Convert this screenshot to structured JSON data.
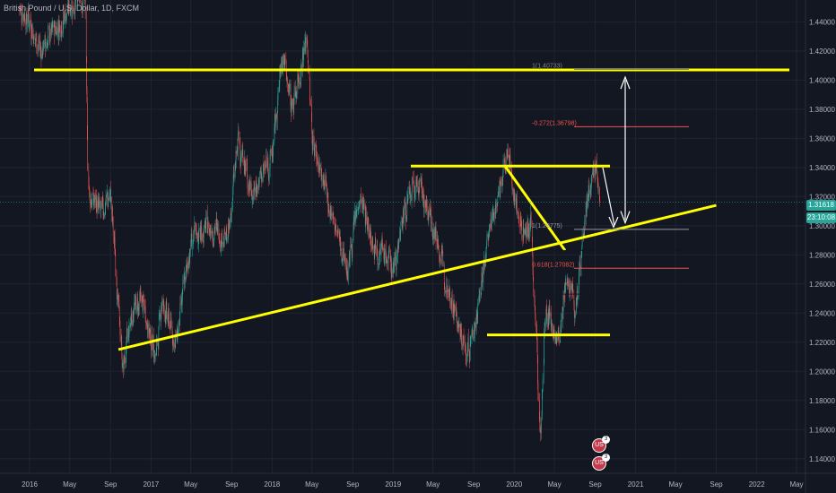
{
  "header": {
    "symbol_title": "British Pound / U.S. Dollar, 1D, FXCM"
  },
  "price_scale": {
    "last_price": "1.31618",
    "countdown": "23:10:08"
  },
  "events": {
    "icon_1_label": "US",
    "icon_1_count": "3",
    "icon_2_label": "US",
    "icon_2_count": "3"
  },
  "colors": {
    "background": "#131722",
    "grid": "#1f2430",
    "up_candle": "#26a69a",
    "down_candle": "#ef5350",
    "trendline": "#ffff00",
    "fib_level": "#ef5350",
    "arrow": "#ffffff"
  },
  "chart_data": {
    "type": "candlestick",
    "title": "British Pound / U.S. Dollar, 1D, FXCM",
    "ylim": [
      1.13,
      1.455
    ],
    "y_ticks": [
      1.14,
      1.16,
      1.18,
      1.2,
      1.22,
      1.24,
      1.26,
      1.28,
      1.3,
      1.32,
      1.34,
      1.36,
      1.38,
      1.4,
      1.42,
      1.44
    ],
    "y_tick_labels": [
      "1.14000",
      "1.16000",
      "1.18000",
      "1.20000",
      "1.22000",
      "1.24000",
      "1.26000",
      "1.28000",
      "1.30000",
      "1.32000",
      "1.34000",
      "1.36000",
      "1.38000",
      "1.40000",
      "1.42000",
      "1.44000"
    ],
    "x_ticks": [
      "2016-01-01",
      "2016-05-01",
      "2016-09-01",
      "2017-01-01",
      "2017-05-01",
      "2017-09-01",
      "2018-01-01",
      "2018-05-01",
      "2018-09-01",
      "2019-01-01",
      "2019-05-01",
      "2019-09-01",
      "2020-01-01",
      "2020-05-01",
      "2020-09-01",
      "2021-01-01",
      "2021-05-01",
      "2021-09-01",
      "2022-01-01",
      "2022-05-01"
    ],
    "x_tick_labels": [
      "2016",
      "May",
      "Sep",
      "2017",
      "May",
      "Sep",
      "2018",
      "May",
      "Sep",
      "2019",
      "May",
      "Sep",
      "2020",
      "May",
      "Sep",
      "2021",
      "May",
      "Sep",
      "2022",
      "May"
    ],
    "price_path": [
      [
        "2015-12-01",
        1.45
      ],
      [
        "2016-01-01",
        1.44
      ],
      [
        "2016-02-01",
        1.42
      ],
      [
        "2016-03-01",
        1.43
      ],
      [
        "2016-04-01",
        1.44
      ],
      [
        "2016-05-01",
        1.45
      ],
      [
        "2016-06-15",
        1.46
      ],
      [
        "2016-06-24",
        1.33
      ],
      [
        "2016-07-01",
        1.32
      ],
      [
        "2016-08-01",
        1.31
      ],
      [
        "2016-09-01",
        1.32
      ],
      [
        "2016-10-07",
        1.2
      ],
      [
        "2016-11-01",
        1.24
      ],
      [
        "2016-12-01",
        1.25
      ],
      [
        "2017-01-15",
        1.21
      ],
      [
        "2017-02-01",
        1.25
      ],
      [
        "2017-03-15",
        1.22
      ],
      [
        "2017-05-01",
        1.29
      ],
      [
        "2017-07-01",
        1.3
      ],
      [
        "2017-08-20",
        1.29
      ],
      [
        "2017-09-20",
        1.36
      ],
      [
        "2017-11-01",
        1.32
      ],
      [
        "2018-01-01",
        1.35
      ],
      [
        "2018-02-01",
        1.42
      ],
      [
        "2018-03-01",
        1.38
      ],
      [
        "2018-04-15",
        1.43
      ],
      [
        "2018-05-01",
        1.36
      ],
      [
        "2018-06-01",
        1.33
      ],
      [
        "2018-08-15",
        1.27
      ],
      [
        "2018-09-20",
        1.32
      ],
      [
        "2018-11-01",
        1.29
      ],
      [
        "2019-01-01",
        1.27
      ],
      [
        "2019-02-01",
        1.31
      ],
      [
        "2019-03-15",
        1.33
      ],
      [
        "2019-05-01",
        1.3
      ],
      [
        "2019-06-01",
        1.27
      ],
      [
        "2019-08-10",
        1.21
      ],
      [
        "2019-09-01",
        1.23
      ],
      [
        "2019-10-20",
        1.3
      ],
      [
        "2019-12-13",
        1.35
      ],
      [
        "2020-01-15",
        1.3
      ],
      [
        "2020-02-20",
        1.3
      ],
      [
        "2020-03-20",
        1.15
      ],
      [
        "2020-04-01",
        1.24
      ],
      [
        "2020-05-15",
        1.22
      ],
      [
        "2020-06-10",
        1.27
      ],
      [
        "2020-07-01",
        1.24
      ],
      [
        "2020-08-01",
        1.31
      ],
      [
        "2020-09-01",
        1.34
      ],
      [
        "2020-09-15",
        1.32
      ]
    ],
    "drawings": {
      "resistance_line_y": 1.407,
      "rising_trendline": [
        [
          "2016-09-25",
          1.215
        ],
        [
          "2021-09-01",
          1.314
        ]
      ],
      "channel_top_y": 1.341,
      "channel_bottom_y": 1.225,
      "fib_levels": [
        {
          "label": "1(1.40733)",
          "value": 1.4073,
          "color": "#7f8491"
        },
        {
          "label": "-0.272(1.36798)",
          "value": 1.368,
          "color": "#ef5350"
        },
        {
          "label": "1(1.29775)",
          "value": 1.2975,
          "color": "#9598a1"
        },
        {
          "label": "0.618(1.27082)",
          "value": 1.2708,
          "color": "#ef5350"
        }
      ]
    }
  }
}
